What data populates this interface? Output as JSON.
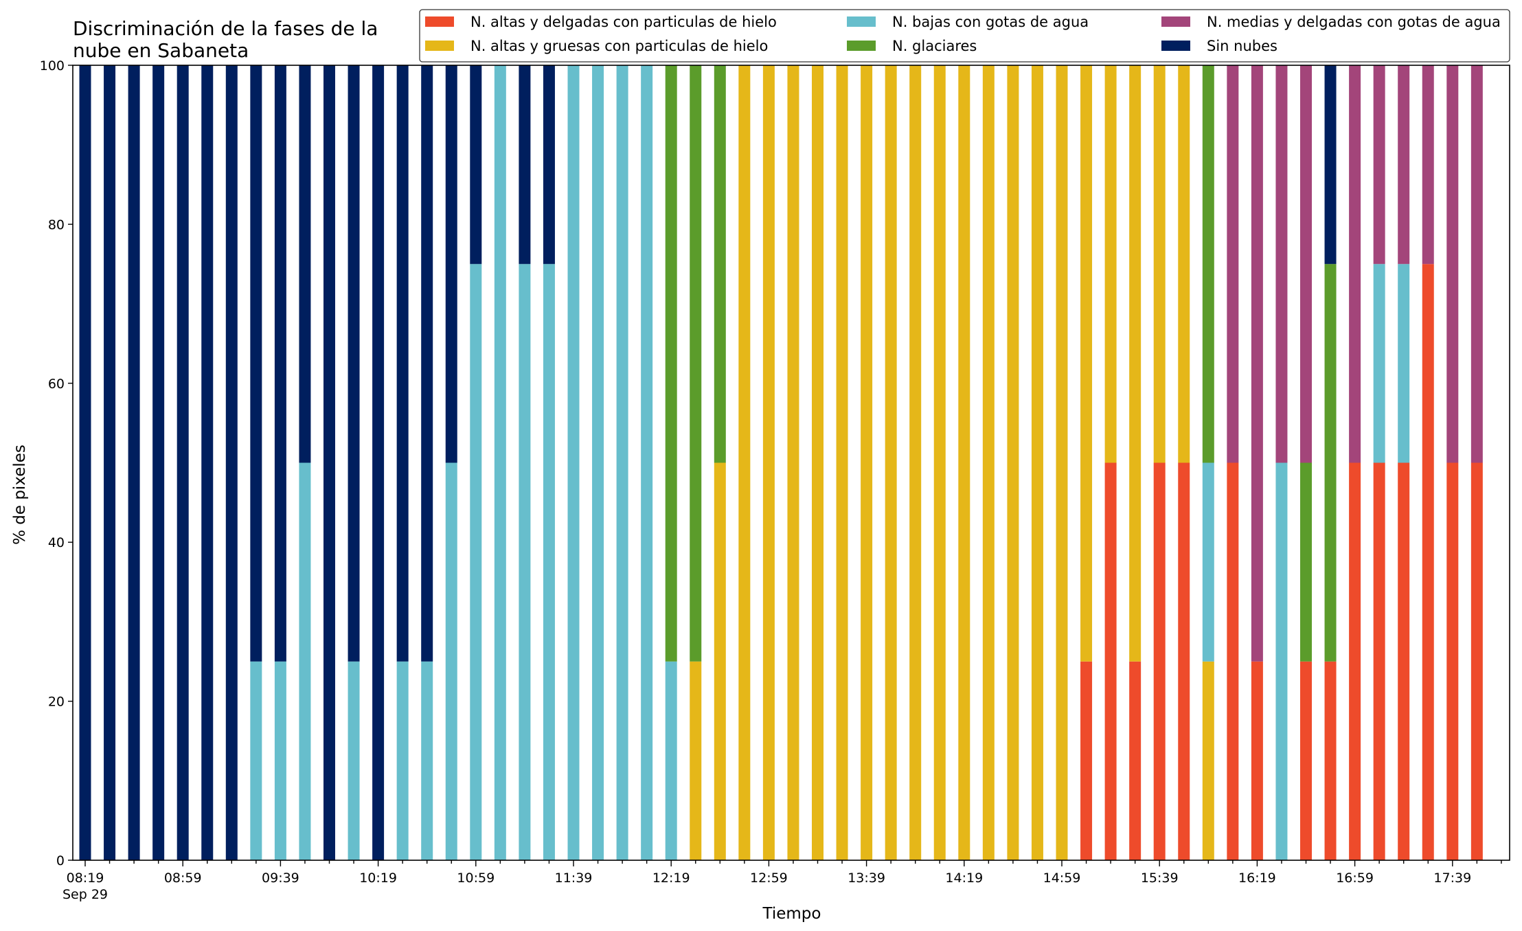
{
  "chart_data": {
    "type": "bar",
    "stacked": true,
    "title_lines": [
      "Discriminación de la fases de la",
      "nube en Sabaneta"
    ],
    "xlabel": "Tiempo",
    "ylabel": "% de pixeles",
    "ylim": [
      0,
      100
    ],
    "yticks": [
      0,
      20,
      40,
      60,
      80,
      100
    ],
    "xtick_labels": [
      {
        "index": 0,
        "label": "08:19",
        "sub": "Sep 29"
      },
      {
        "index": 4,
        "label": "08:59",
        "sub": ""
      },
      {
        "index": 8,
        "label": "09:39",
        "sub": ""
      },
      {
        "index": 12,
        "label": "10:19",
        "sub": ""
      },
      {
        "index": 16,
        "label": "10:59",
        "sub": ""
      },
      {
        "index": 20,
        "label": "11:39",
        "sub": ""
      },
      {
        "index": 24,
        "label": "12:19",
        "sub": ""
      },
      {
        "index": 28,
        "label": "12:59",
        "sub": ""
      },
      {
        "index": 32,
        "label": "13:39",
        "sub": ""
      },
      {
        "index": 36,
        "label": "14:19",
        "sub": ""
      },
      {
        "index": 40,
        "label": "14:59",
        "sub": ""
      },
      {
        "index": 44,
        "label": "15:39",
        "sub": ""
      },
      {
        "index": 48,
        "label": "16:19",
        "sub": ""
      },
      {
        "index": 52,
        "label": "16:59",
        "sub": ""
      },
      {
        "index": 56,
        "label": "17:39",
        "sub": ""
      }
    ],
    "grid": false,
    "legend_position": "top-right",
    "series": [
      {
        "name": "N. altas y delgadas con particulas de hielo",
        "color": "#EE4B2B",
        "values": [
          0,
          0,
          0,
          0,
          0,
          0,
          0,
          0,
          0,
          0,
          0,
          0,
          0,
          0,
          0,
          0,
          0,
          0,
          0,
          0,
          0,
          0,
          0,
          0,
          0,
          0,
          0,
          0,
          0,
          0,
          0,
          0,
          0,
          0,
          0,
          0,
          0,
          0,
          0,
          0,
          0,
          25,
          50,
          25,
          50,
          50,
          0,
          50,
          25,
          0,
          25,
          25,
          50,
          50,
          50,
          75,
          50,
          50
        ]
      },
      {
        "name": "N. altas y gruesas con particulas de hielo",
        "color": "#E5B719",
        "values": [
          0,
          0,
          0,
          0,
          0,
          0,
          0,
          0,
          0,
          0,
          0,
          0,
          0,
          0,
          0,
          0,
          0,
          0,
          0,
          0,
          0,
          0,
          0,
          0,
          0,
          25,
          50,
          100,
          100,
          100,
          100,
          100,
          100,
          100,
          100,
          100,
          100,
          100,
          100,
          100,
          100,
          75,
          50,
          75,
          50,
          50,
          25,
          0,
          0,
          0,
          0,
          0,
          0,
          0,
          0,
          0,
          0,
          0
        ]
      },
      {
        "name": "N. bajas con gotas de agua",
        "color": "#67BECC",
        "values": [
          0,
          0,
          0,
          0,
          0,
          0,
          0,
          25,
          25,
          50,
          0,
          25,
          0,
          25,
          25,
          50,
          75,
          100,
          75,
          75,
          100,
          100,
          100,
          100,
          25,
          0,
          0,
          0,
          0,
          0,
          0,
          0,
          0,
          0,
          0,
          0,
          0,
          0,
          0,
          0,
          0,
          0,
          0,
          0,
          0,
          0,
          25,
          0,
          0,
          50,
          0,
          0,
          0,
          25,
          25,
          0,
          0,
          0
        ]
      },
      {
        "name": "N. glaciares",
        "color": "#5B9C2B",
        "values": [
          0,
          0,
          0,
          0,
          0,
          0,
          0,
          0,
          0,
          0,
          0,
          0,
          0,
          0,
          0,
          0,
          0,
          0,
          0,
          0,
          0,
          0,
          0,
          0,
          75,
          75,
          50,
          0,
          0,
          0,
          0,
          0,
          0,
          0,
          0,
          0,
          0,
          0,
          0,
          0,
          0,
          0,
          0,
          0,
          0,
          0,
          50,
          0,
          0,
          0,
          25,
          50,
          0,
          0,
          0,
          0,
          0,
          0
        ]
      },
      {
        "name": "N. medias y delgadas con gotas de agua",
        "color": "#A3457A",
        "values": [
          0,
          0,
          0,
          0,
          0,
          0,
          0,
          0,
          0,
          0,
          0,
          0,
          0,
          0,
          0,
          0,
          0,
          0,
          0,
          0,
          0,
          0,
          0,
          0,
          0,
          0,
          0,
          0,
          0,
          0,
          0,
          0,
          0,
          0,
          0,
          0,
          0,
          0,
          0,
          0,
          0,
          0,
          0,
          0,
          0,
          0,
          0,
          50,
          75,
          50,
          50,
          0,
          50,
          25,
          25,
          25,
          50,
          50
        ]
      },
      {
        "name": "Sin nubes",
        "color": "#001F5E",
        "values": [
          100,
          100,
          100,
          100,
          100,
          100,
          100,
          75,
          75,
          50,
          100,
          75,
          100,
          75,
          75,
          50,
          25,
          0,
          25,
          25,
          0,
          0,
          0,
          0,
          0,
          0,
          0,
          0,
          0,
          0,
          0,
          0,
          0,
          0,
          0,
          0,
          0,
          0,
          0,
          0,
          0,
          0,
          0,
          0,
          0,
          0,
          0,
          0,
          0,
          0,
          0,
          25,
          0,
          0,
          0,
          0,
          0,
          0
        ]
      }
    ]
  }
}
